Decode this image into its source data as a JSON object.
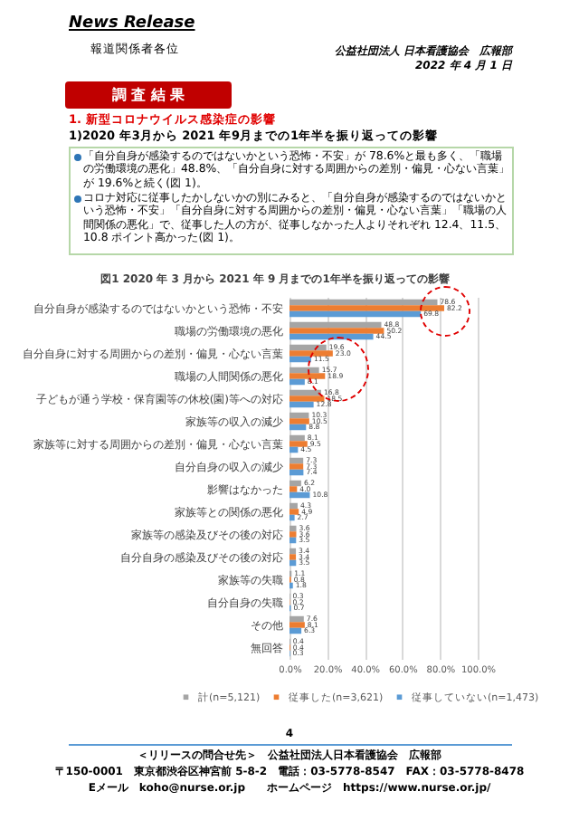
{
  "chart_data": {
    "type": "bar",
    "orientation": "horizontal",
    "title": "図1 2020 年 3 月から 2021 年 9 月までの1年半を振り返っての影響",
    "categories": [
      "自分自身が感染するのではないかという恐怖・不安",
      "職場の労働環境の悪化",
      "自分自身に対する周囲からの差別・偏見・心ない言葉",
      "職場の人間関係の悪化",
      "子どもが通う学校・保育園等の休校(園)等への対応",
      "家族等の収入の減少",
      "家族等に対する周囲からの差別・偏見・心ない言葉",
      "自分自身の収入の減少",
      "影響はなかった",
      "家族等との関係の悪化",
      "家族等の感染及びその後の対応",
      "自分自身の感染及びその後の対応",
      "家族等の失職",
      "自分自身の失職",
      "その他",
      "無回答"
    ],
    "series": [
      {
        "name": "計(n=5,121)",
        "color": "#a5a5a5",
        "values": [
          78.6,
          48.8,
          19.6,
          15.7,
          16.8,
          10.3,
          8.1,
          7.3,
          6.2,
          4.3,
          3.6,
          3.4,
          1.1,
          0.3,
          7.6,
          0.4
        ],
        "value_labels": [
          "78.6",
          "48.8",
          "19.6",
          "15.7",
          "16.8",
          "10.3",
          "8.1",
          "7.3",
          "6.2",
          "4.3",
          "3.6",
          "3.4",
          "1.1",
          "0.3",
          "7.6",
          "0.4"
        ]
      },
      {
        "name": "従事した(n=3,621)",
        "color": "#ed7d31",
        "values": [
          82.2,
          50.2,
          23.0,
          18.9,
          18.5,
          10.5,
          9.5,
          7.3,
          4.0,
          4.9,
          3.6,
          3.4,
          0.8,
          0.2,
          8.1,
          0.4
        ],
        "value_labels": [
          "82.2",
          "50.2",
          "23.0",
          "18.9",
          "18.5",
          "10.5",
          "9.5",
          "7.3",
          "4.0",
          "4.9",
          "3.6",
          "3.4",
          "0.8",
          "0.2",
          "8.1",
          "0.4"
        ]
      },
      {
        "name": "従事していない(n=1,473)",
        "color": "#5b9bd5",
        "values": [
          69.8,
          44.5,
          11.5,
          8.1,
          12.8,
          8.8,
          4.5,
          7.4,
          10.8,
          2.7,
          3.5,
          3.5,
          1.8,
          0.7,
          6.3,
          0.3
        ],
        "value_labels": [
          "69.8",
          "44.5",
          "11.5",
          "8.1",
          "12.8",
          "8.8",
          "4.5",
          "7.4",
          "10.8",
          "2.7",
          "3.5",
          "3.5",
          "1.8",
          "0.7",
          "6.3",
          "0.3"
        ]
      }
    ],
    "xlim": [
      0,
      100
    ],
    "xticks": [
      {
        "value": 0,
        "label": "0.0%"
      },
      {
        "value": 20,
        "label": "20.0%"
      },
      {
        "value": 40,
        "label": "40.0%"
      },
      {
        "value": 60,
        "label": "60.0%"
      },
      {
        "value": 80,
        "label": "80.0%"
      },
      {
        "value": 100,
        "label": "100.0%"
      }
    ],
    "grid": "x",
    "legend": "bottom",
    "annotations": [
      "News Release",
      "報道関係者各位",
      "公益社団法人 日本看護協会　広報部",
      "2022 年 4 月 1 日",
      "調 査 結 果",
      "1. 新型コロナウイルス感染症の影響",
      "1)2020 年3月から 2021 年9月までの1年半を振り返っての影響",
      "「自分自身が感染するのではないかという恐怖・不安」が 78.6%と最も多く、「職場の労働環境の悪化」48.8%、「自分自身に対する周囲からの差別・偏見・心ない言葉」が 19.6%と続く(図 1)。",
      "コロナ対応に従事したかしないかの別にみると、「自分自身が感染するのではないかという恐怖・不安」「自分自身に対する周囲からの差別・偏見・心ない言葉」「職場の人間関係の悪化」で、従事した人の方が、従事しなかった人よりそれぞれ 12.4、11.5、10.8 ポイント高かった(図 1)。",
      "4",
      "＜リリースの問合せ先＞　公益社団法人日本看護協会　広報部",
      "〒150-0001　東京都渋谷区神宮前 5-8-2　電話：03-5778-8547　FAX：03-5778-8478",
      "Eメール　koho@nurse.or.jp　　ホームページ　https://www.nurse.or.jp/"
    ]
  }
}
